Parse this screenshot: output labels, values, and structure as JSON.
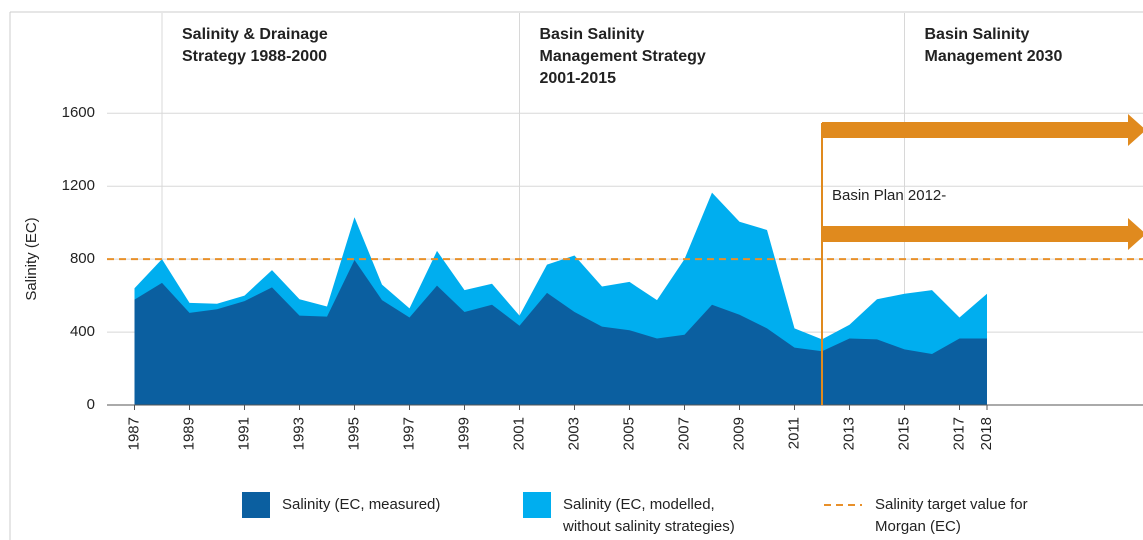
{
  "chart_data": {
    "type": "area",
    "y_label": "Salinity (EC)",
    "x": [
      1987,
      1988,
      1989,
      1990,
      1991,
      1992,
      1993,
      1994,
      1995,
      1996,
      1997,
      1998,
      1999,
      2000,
      2001,
      2002,
      2003,
      2004,
      2005,
      2006,
      2007,
      2008,
      2009,
      2010,
      2011,
      2012,
      2013,
      2014,
      2015,
      2016,
      2017,
      2018
    ],
    "series": [
      {
        "name": "Salinity (EC, modelled, without salinity strategies)",
        "color": "#00aeef",
        "values": [
          640,
          800,
          560,
          555,
          600,
          740,
          580,
          540,
          1030,
          660,
          530,
          845,
          630,
          665,
          490,
          770,
          820,
          650,
          675,
          575,
          800,
          1165,
          1005,
          960,
          420,
          360,
          440,
          580,
          610,
          630,
          480,
          610
        ]
      },
      {
        "name": "Salinity (EC, measured)",
        "color": "#0b5fa0",
        "values": [
          578,
          670,
          505,
          525,
          570,
          645,
          490,
          485,
          795,
          575,
          480,
          655,
          510,
          550,
          435,
          615,
          510,
          430,
          410,
          365,
          385,
          550,
          495,
          420,
          315,
          295,
          365,
          360,
          305,
          280,
          365,
          365
        ]
      }
    ],
    "target": {
      "name": "Salinity target value for Morgan (EC)",
      "value": 800,
      "color": "#e8902a"
    },
    "periods": [
      {
        "label": "Salinity & Drainage Strategy 1988-2000",
        "x": 1988
      },
      {
        "label": "Basin Salinity Management Strategy 2001-2015",
        "x": 2001
      },
      {
        "label": "Basin Salinity Management 2030",
        "x": 2015
      }
    ],
    "plan": {
      "label": "Basin Plan 2012-",
      "x": 2012,
      "color": "#e08a1e"
    },
    "xlim": [
      1986,
      2024
    ],
    "xticks": [
      1987,
      1989,
      1991,
      1993,
      1995,
      1997,
      1999,
      2001,
      2003,
      2005,
      2007,
      2009,
      2011,
      2013,
      2015,
      2017,
      2018
    ],
    "ylim": [
      0,
      2150
    ],
    "yticks": [
      0,
      400,
      800,
      1200,
      1600
    ],
    "grid": true
  }
}
